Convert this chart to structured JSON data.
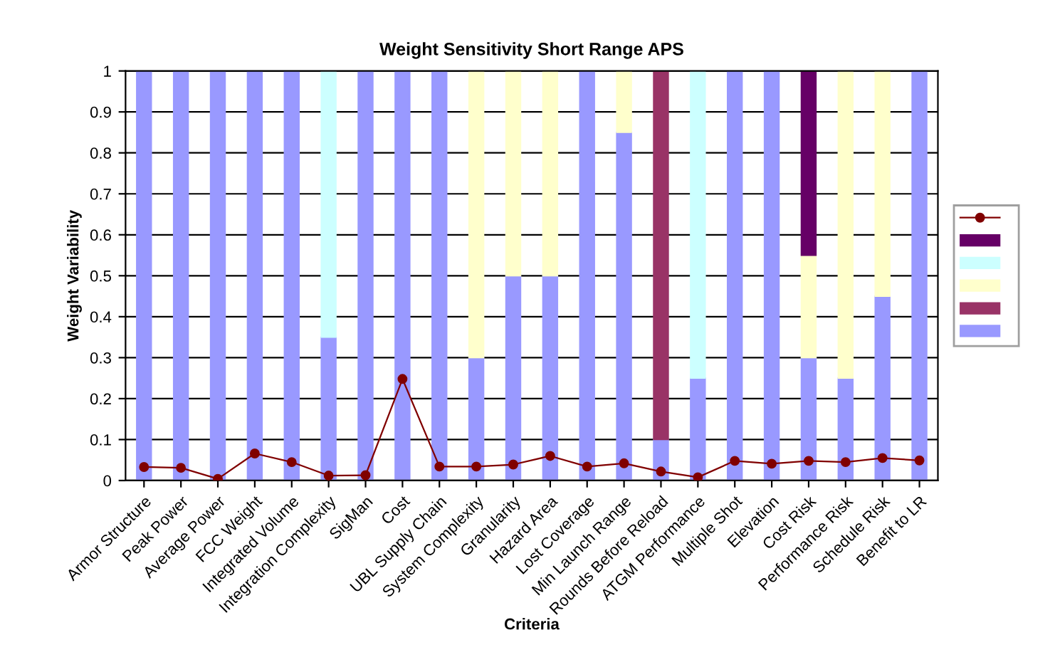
{
  "chart_data": {
    "type": "bar",
    "stacked": true,
    "title": "Weight Sensitivity Short Range APS",
    "xlabel": "Criteria",
    "ylabel": "Weight Variability",
    "categories": [
      "Armor Structure",
      "Peak Power",
      "Average Power",
      "FCC Weight",
      "Integrated Volume",
      "Integration Complexity",
      "SigMan",
      "Cost",
      "UBL Supply Chain",
      "System Complexity",
      "Granularity",
      "Hazard Area",
      "Lost Coverage",
      "Min Launch Range",
      "Rounds Before Reload",
      "ATGM Performance",
      "Multiple Shot",
      "Elevation",
      "Cost Risk",
      "Performance Risk",
      "Schedule Risk",
      "Benefit to LR"
    ],
    "series": [
      {
        "color": "#9999ff",
        "values": [
          1,
          1,
          1,
          1,
          1,
          0.35,
          1,
          1,
          1,
          0.3,
          0.5,
          0.5,
          1,
          0.85,
          0.1,
          0.25,
          1,
          1,
          0.3,
          0.25,
          0.45,
          1
        ]
      },
      {
        "color": "#993366",
        "values": [
          null,
          null,
          null,
          null,
          null,
          null,
          null,
          null,
          null,
          null,
          null,
          null,
          null,
          null,
          0.9,
          null,
          null,
          null,
          null,
          null,
          null,
          null
        ]
      },
      {
        "color": "#ffffcc",
        "values": [
          null,
          null,
          null,
          null,
          null,
          null,
          null,
          null,
          null,
          0.7,
          0.5,
          0.5,
          null,
          0.15,
          null,
          null,
          null,
          null,
          0.25,
          0.75,
          0.55,
          null
        ]
      },
      {
        "color": "#ccffff",
        "values": [
          null,
          null,
          null,
          null,
          null,
          0.65,
          null,
          null,
          null,
          null,
          null,
          null,
          null,
          null,
          null,
          0.75,
          null,
          null,
          null,
          null,
          null,
          null
        ]
      },
      {
        "color": "#660066",
        "values": [
          null,
          null,
          null,
          null,
          null,
          null,
          null,
          null,
          null,
          null,
          null,
          null,
          null,
          null,
          null,
          null,
          null,
          null,
          0.45,
          null,
          null,
          null
        ]
      },
      {
        "type": "line",
        "color": "#800000",
        "marker": "circle",
        "values": [
          0.033,
          0.031,
          0.004,
          0.066,
          0.045,
          0.012,
          0.013,
          0.248,
          0.034,
          0.034,
          0.039,
          0.06,
          0.034,
          0.042,
          0.022,
          0.008,
          0.048,
          0.041,
          0.048,
          0.045,
          0.055,
          0.049
        ]
      }
    ],
    "ylim": [
      0,
      1
    ],
    "yticks": [
      0,
      0.1,
      0.2,
      0.3,
      0.4,
      0.5,
      0.6,
      0.7,
      0.8,
      0.9,
      1
    ],
    "grid": "y"
  }
}
